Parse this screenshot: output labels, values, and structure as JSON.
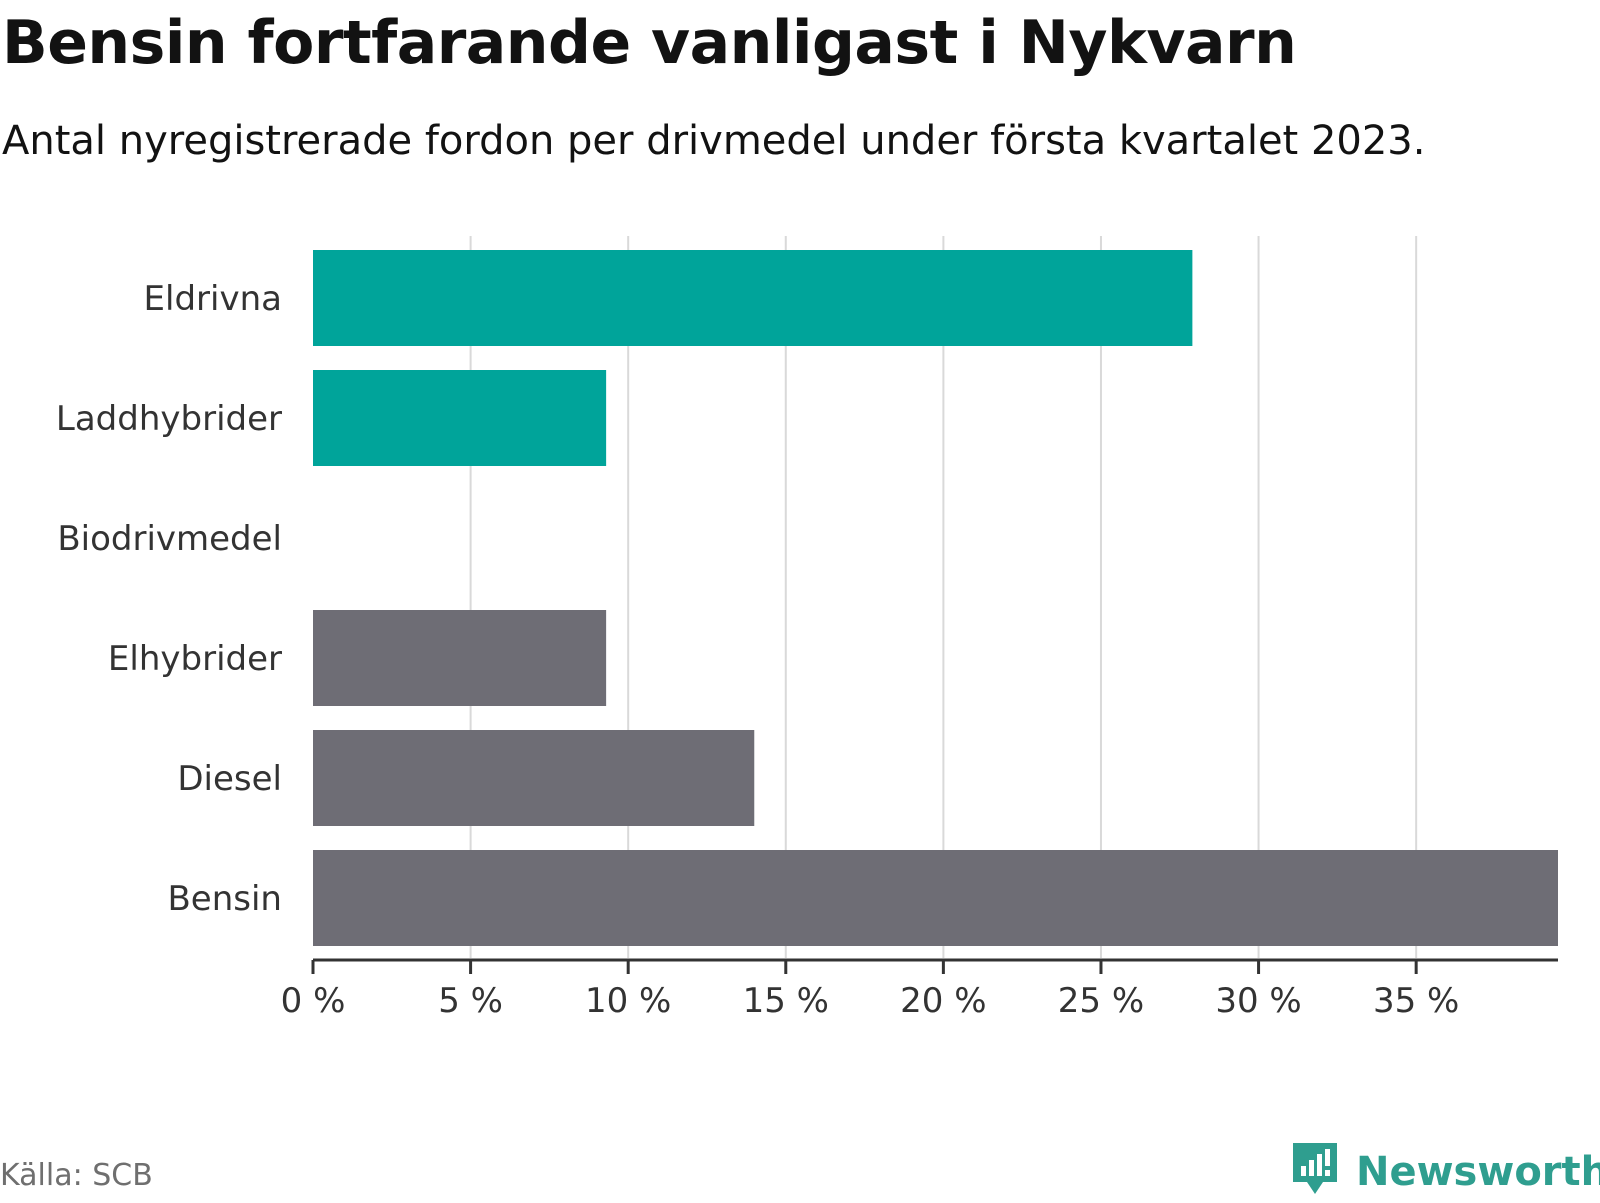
{
  "title": "Bensin fortfarande vanligast i Nykvarn",
  "subtitle": "Antal nyregistrerade fordon per drivmedel under första kvartalet 2023.",
  "source": "Källa: SCB",
  "brand": {
    "name": "Newsworthy",
    "icon": "newsworthy-logo-icon"
  },
  "colors": {
    "highlight": "#00a49a",
    "neutral": "#6e6d75",
    "grid": "#d9d9d9",
    "axis": "#333333",
    "brand": "#2f9e8f"
  },
  "chart_data": {
    "type": "bar",
    "orientation": "horizontal",
    "categories": [
      "Eldrivna",
      "Laddhybrider",
      "Biodrivmedel",
      "Elhybrider",
      "Diesel",
      "Bensin"
    ],
    "values": [
      27.9,
      9.3,
      0,
      9.3,
      14.0,
      39.5
    ],
    "bar_colors": [
      "#00a49a",
      "#00a49a",
      "#6e6d75",
      "#6e6d75",
      "#6e6d75",
      "#6e6d75"
    ],
    "xlim": [
      0,
      39.5
    ],
    "xticks": [
      0,
      5,
      10,
      15,
      20,
      25,
      30,
      35
    ],
    "xtick_labels": [
      "0 %",
      "5 %",
      "10 %",
      "15 %",
      "20 %",
      "25 %",
      "30 %",
      "35 %"
    ],
    "xlabel": "",
    "ylabel": "",
    "grid": true,
    "unit": "%"
  }
}
